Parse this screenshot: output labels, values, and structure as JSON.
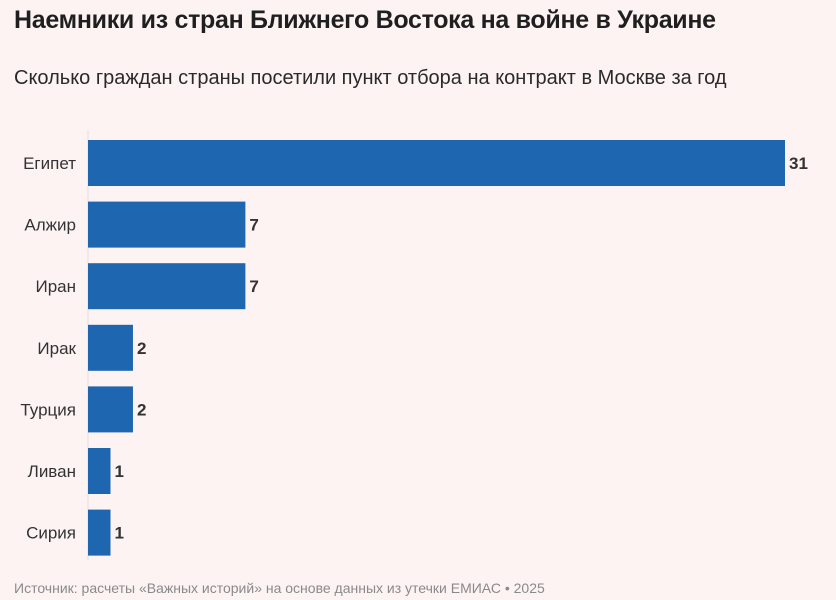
{
  "title": "Наемники из стран Ближнего Востока на войне в Украине",
  "subtitle": "Сколько граждан страны посетили пункт отбора на контракт в Москве за год",
  "source": "Источник: расчеты «Важных историй» на основе данных из утечки ЕМИАС • 2025",
  "chart_data": {
    "type": "bar",
    "orientation": "horizontal",
    "title": "Наемники из стран Ближнего Востока на войне в Украине",
    "subtitle": "Сколько граждан страны посетили пункт отбора на контракт в Москве за год",
    "categories": [
      "Египет",
      "Алжир",
      "Иран",
      "Ирак",
      "Турция",
      "Ливан",
      "Сирия"
    ],
    "values": [
      31,
      7,
      7,
      2,
      2,
      1,
      1
    ],
    "xlim": [
      0,
      31
    ],
    "grid": false,
    "data_labels": true,
    "bar_color": "#1e66b0"
  }
}
